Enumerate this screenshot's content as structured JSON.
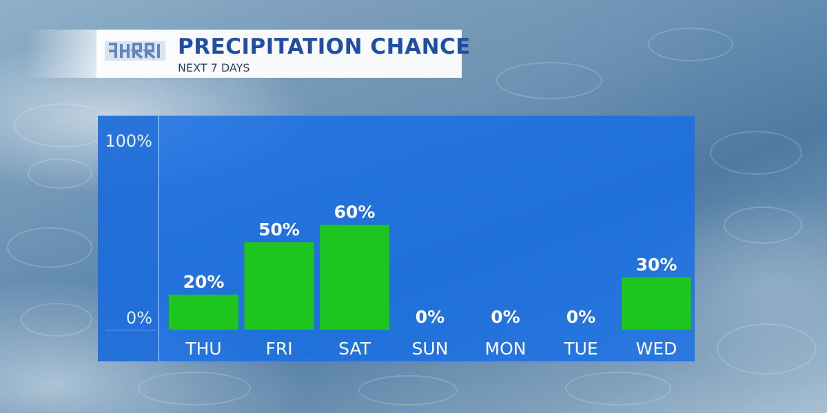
{
  "header": {
    "title": "PRECIPITATION CHANCE",
    "subtitle": "NEXT 7 DAYS",
    "logo_icon": "station-logo-icon"
  },
  "colors": {
    "panel": "#1a6fe6",
    "bar": "#1ec51f",
    "title": "#1f4fa3",
    "label": "#ffffff"
  },
  "chart_data": {
    "type": "bar",
    "title": "PRECIPITATION CHANCE",
    "subtitle": "NEXT 7 DAYS",
    "categories": [
      "THU",
      "FRI",
      "SAT",
      "SUN",
      "MON",
      "TUE",
      "WED"
    ],
    "values": [
      20,
      50,
      60,
      0,
      0,
      0,
      30
    ],
    "value_labels": [
      "20%",
      "50%",
      "60%",
      "0%",
      "0%",
      "0%",
      "30%"
    ],
    "ylim": [
      0,
      100
    ],
    "yticks": [
      {
        "value": 100,
        "label": "100%"
      },
      {
        "value": 0,
        "label": "0%"
      }
    ],
    "xlabel": "",
    "ylabel": "",
    "grid": false,
    "legend": "none"
  }
}
